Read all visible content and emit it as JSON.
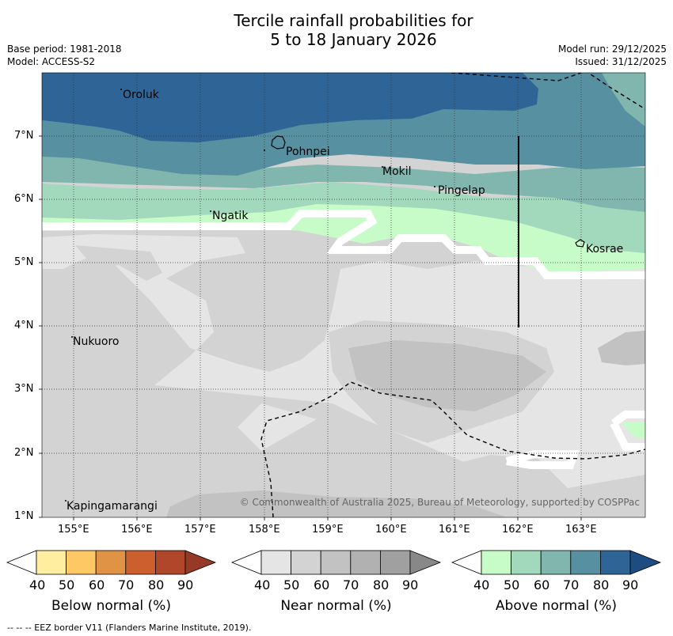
{
  "title": {
    "line1": "Tercile rainfall probabilities for",
    "line2": "5 to 18 January 2026"
  },
  "meta": {
    "base_period": "Base period: 1981-2018",
    "model": "Model: ACCESS-S2",
    "model_run": "Model run: 29/12/2025",
    "issued": "Issued: 31/12/2025"
  },
  "map": {
    "places": [
      "Oroluk",
      "Pohnpei",
      "Mokil",
      "Pingelap",
      "Ngatik",
      "Kosrae",
      "Nukuoro",
      "Kapingamarangi"
    ],
    "lat_ticks": [
      "7°N",
      "6°N",
      "5°N",
      "4°N",
      "3°N",
      "2°N",
      "1°N"
    ],
    "lon_ticks": [
      "155°E",
      "156°E",
      "157°E",
      "158°E",
      "159°E",
      "160°E",
      "161°E",
      "162°E",
      "163°E"
    ],
    "copyright": "© Commonwealth of Australia 2025, Bureau of Meteorology, supported by COSPPac"
  },
  "colorbars": [
    {
      "label": "Below normal (%)",
      "ticks": [
        "40",
        "50",
        "60",
        "70",
        "80",
        "90"
      ],
      "colors": [
        "#ffffff",
        "#ffeda0",
        "#fec965",
        "#e09345",
        "#cb5f2e",
        "#b0472b",
        "#963a27"
      ]
    },
    {
      "label": "Near normal (%)",
      "ticks": [
        "40",
        "50",
        "60",
        "70",
        "80",
        "90"
      ],
      "colors": [
        "#ffffff",
        "#e5e5e5",
        "#d3d3d3",
        "#c2c2c2",
        "#b1b1b1",
        "#a0a0a0",
        "#888888"
      ]
    },
    {
      "label": "Above normal (%)",
      "ticks": [
        "40",
        "50",
        "60",
        "70",
        "80",
        "90"
      ],
      "colors": [
        "#ffffff",
        "#c7fcc9",
        "#a2d9bc",
        "#80b6ae",
        "#5791a1",
        "#2f6596",
        "#1d4c83"
      ]
    }
  ],
  "footer": "--  --  -- EEZ border V11 (Flanders Marine Institute, 2019)."
}
